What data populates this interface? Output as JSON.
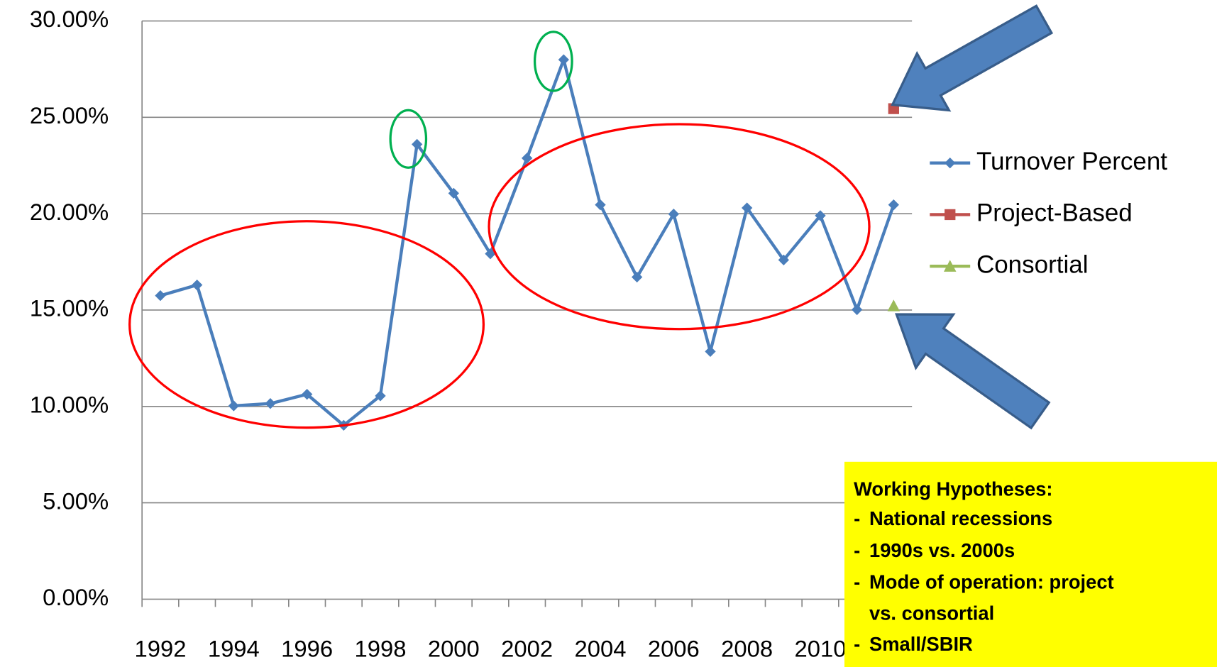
{
  "chart_data": {
    "type": "line",
    "categories": [
      "1992",
      null,
      "1994",
      null,
      "1996",
      null,
      "1998",
      null,
      "2000",
      null,
      "2002",
      null,
      "2004",
      null,
      "2006",
      null,
      "2008",
      null,
      "2010",
      null,
      null
    ],
    "series": [
      {
        "name": "Turnover Percent",
        "color": "#4a7ebb",
        "marker": "diamond",
        "values": [
          15.75,
          16.3,
          10.03,
          10.15,
          10.63,
          9.02,
          10.55,
          23.6,
          21.06,
          17.92,
          22.88,
          27.99,
          20.46,
          16.71,
          19.98,
          12.85,
          20.3,
          17.6,
          19.9,
          15.02,
          20.46
        ]
      },
      {
        "name": "Project-Based",
        "color": "#c0504d",
        "marker": "square",
        "values": [
          null,
          null,
          null,
          null,
          null,
          null,
          null,
          null,
          null,
          null,
          null,
          null,
          null,
          null,
          null,
          null,
          null,
          null,
          null,
          null,
          25.45
        ]
      },
      {
        "name": "Consortial",
        "color": "#9bbb59",
        "marker": "triangle",
        "values": [
          null,
          null,
          null,
          null,
          null,
          null,
          null,
          null,
          null,
          null,
          null,
          null,
          null,
          null,
          null,
          null,
          null,
          null,
          null,
          null,
          15.22
        ]
      }
    ],
    "ylim": [
      0,
      30
    ],
    "yticks": [
      {
        "value": 0,
        "label": "0.00%"
      },
      {
        "value": 5,
        "label": "5.00%"
      },
      {
        "value": 10,
        "label": "10.00%"
      },
      {
        "value": 15,
        "label": "15.00%"
      },
      {
        "value": 20,
        "label": "20.00%"
      },
      {
        "value": 25,
        "label": "25.00%"
      },
      {
        "value": 30,
        "label": "30.00%"
      }
    ],
    "grid": true,
    "legend": "right",
    "note": {
      "title": "Working Hypotheses:",
      "items": [
        "National recessions",
        "1990s vs. 2000s",
        "Mode of operation: project",
        "vs. consortial",
        "Small/SBIR"
      ]
    }
  }
}
